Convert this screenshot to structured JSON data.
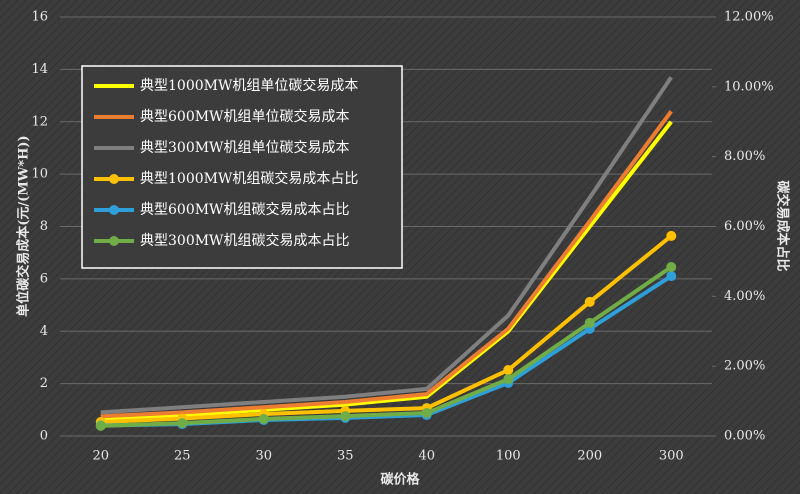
{
  "chart_data": {
    "type": "line",
    "categories": [
      "20",
      "25",
      "30",
      "35",
      "40",
      "100",
      "200",
      "300"
    ],
    "xlabel": "碳价格",
    "ylabel": "单位碳交易成本(元/(MW*H))",
    "y2label": "碳交易成本占比",
    "ylim": [
      0,
      16
    ],
    "yticks": [
      0,
      2,
      4,
      6,
      8,
      10,
      12,
      14,
      16
    ],
    "y2lim": [
      0,
      12
    ],
    "y2ticks": [
      {
        "value": 0,
        "label": "0.00%"
      },
      {
        "value": 2,
        "label": "2.00%"
      },
      {
        "value": 4,
        "label": "4.00%"
      },
      {
        "value": 6,
        "label": "6.00%"
      },
      {
        "value": 8,
        "label": "8.00%"
      },
      {
        "value": 10,
        "label": "10.00%"
      },
      {
        "value": 12,
        "label": "12.00%"
      }
    ],
    "grid": true,
    "legend": "upper left",
    "series": [
      {
        "name": "典型1000MW机组单位碳交易成本",
        "color": "#ffff00",
        "values": [
          0.6,
          0.8,
          1.0,
          1.2,
          1.5,
          4.0,
          8.0,
          12.0
        ]
      },
      {
        "name": "典型600MW机组单位碳交易成本",
        "color": "#ed7d31",
        "values": [
          0.75,
          0.9,
          1.1,
          1.3,
          1.6,
          4.1,
          8.2,
          12.4
        ]
      },
      {
        "name": "典型300MW机组单位碳交易成本",
        "color": "#7f7f7f",
        "values": [
          0.9,
          1.1,
          1.3,
          1.5,
          1.8,
          4.6,
          9.1,
          13.7
        ]
      },
      {
        "name": "典型1000MW机组碳交易成本占比",
        "color": "#ffc000",
        "axis": "y2",
        "values": [
          0.4,
          0.5,
          0.63,
          0.72,
          0.8,
          1.89,
          3.84,
          5.73
        ]
      },
      {
        "name": "典型600MW机组碳交易成本占比",
        "color": "#2e9fd8",
        "axis": "y2",
        "values": [
          0.3,
          0.34,
          0.46,
          0.52,
          0.6,
          1.52,
          3.07,
          4.58
        ]
      },
      {
        "name": "典型300MW机组碳交易成本占比",
        "color": "#70ad47",
        "axis": "y2",
        "values": [
          0.29,
          0.37,
          0.49,
          0.57,
          0.66,
          1.63,
          3.24,
          4.84
        ]
      }
    ]
  }
}
